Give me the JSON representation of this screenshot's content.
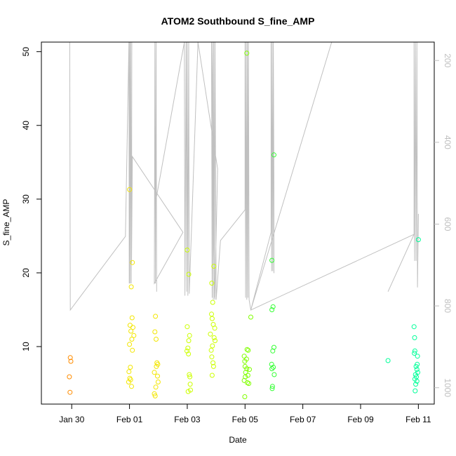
{
  "chart_data": {
    "type": "scatter",
    "title": "ATOM2 Southbound S_fine_AMP",
    "xlabel": "Date",
    "ylabel": "S_fine_AMP",
    "x_ticks": [
      "Jan 30",
      "Feb 01",
      "Feb 03",
      "Feb 05",
      "Feb 07",
      "Feb 09",
      "Feb 11"
    ],
    "y_ticks": [
      "10",
      "20",
      "30",
      "40",
      "50"
    ],
    "y2_ticks": [
      "200",
      "400",
      "600",
      "800",
      "1000"
    ],
    "xlim_days": [
      -2.05,
      11.55
    ],
    "ylim": [
      2.2,
      51.3
    ],
    "y2lim": [
      1040,
      155
    ],
    "y2_inverted": true,
    "colors": {
      "line": "#c0c0c0",
      "scale": [
        "#ff8c00",
        "#f3e600",
        "#ccff00",
        "#80ff00",
        "#33ff33",
        "#00ff99"
      ]
    },
    "series": [
      {
        "points_days": [
          [
            -1.05,
            8.5
          ],
          [
            -1.03,
            8.0
          ],
          [
            -1.08,
            5.9
          ],
          [
            -1.06,
            3.8
          ]
        ]
      },
      {
        "points_days": [
          [
            1.0,
            31.3
          ],
          [
            1.1,
            21.4
          ],
          [
            1.06,
            18.1
          ],
          [
            1.09,
            13.9
          ],
          [
            1.02,
            12.9
          ],
          [
            1.12,
            12.6
          ],
          [
            1.05,
            12.1
          ],
          [
            1.15,
            11.5
          ],
          [
            1.08,
            11.0
          ],
          [
            1.0,
            10.3
          ],
          [
            1.1,
            9.5
          ],
          [
            1.03,
            7.2
          ],
          [
            0.98,
            6.6
          ],
          [
            1.01,
            5.7
          ],
          [
            1.04,
            5.5
          ],
          [
            0.97,
            5.2
          ],
          [
            1.07,
            4.6
          ],
          [
            1.9,
            14.1
          ],
          [
            1.88,
            12.0
          ],
          [
            1.92,
            11.0
          ],
          [
            1.95,
            7.8
          ],
          [
            1.98,
            7.6
          ],
          [
            1.93,
            7.3
          ],
          [
            1.86,
            6.5
          ],
          [
            1.97,
            6.0
          ],
          [
            1.99,
            5.2
          ],
          [
            1.91,
            4.5
          ],
          [
            1.86,
            3.6
          ],
          [
            1.89,
            3.3
          ]
        ]
      },
      {
        "points_days": [
          [
            3.0,
            23.1
          ],
          [
            3.05,
            19.8
          ],
          [
            3.0,
            12.7
          ],
          [
            3.08,
            11.5
          ],
          [
            3.05,
            10.8
          ],
          [
            3.02,
            9.8
          ],
          [
            2.99,
            9.4
          ],
          [
            3.04,
            9.0
          ],
          [
            3.07,
            6.2
          ],
          [
            3.09,
            5.9
          ],
          [
            3.1,
            4.9
          ],
          [
            3.11,
            4.1
          ],
          [
            3.03,
            3.9
          ],
          [
            3.85,
            18.6
          ],
          [
            3.92,
            20.9
          ],
          [
            3.88,
            16.0
          ],
          [
            3.84,
            14.4
          ],
          [
            3.86,
            13.8
          ],
          [
            3.9,
            13.0
          ],
          [
            3.95,
            12.5
          ],
          [
            3.8,
            11.7
          ],
          [
            3.93,
            11.2
          ],
          [
            3.96,
            10.8
          ],
          [
            3.87,
            10.1
          ],
          [
            3.83,
            9.5
          ],
          [
            3.85,
            8.6
          ],
          [
            3.89,
            7.8
          ],
          [
            3.91,
            7.3
          ],
          [
            3.86,
            6.1
          ]
        ]
      },
      {
        "points_days": [
          [
            5.06,
            49.8
          ],
          [
            4.97,
            8.7
          ],
          [
            5.05,
            8.3
          ],
          [
            4.99,
            8.0
          ],
          [
            5.07,
            9.6
          ],
          [
            5.11,
            9.5
          ],
          [
            5.0,
            7.3
          ],
          [
            5.06,
            7.0
          ],
          [
            5.02,
            6.5
          ],
          [
            5.15,
            6.9
          ],
          [
            5.1,
            6.1
          ],
          [
            5.01,
            5.9
          ],
          [
            4.97,
            5.4
          ],
          [
            5.08,
            5.1
          ],
          [
            5.13,
            5.0
          ],
          [
            4.99,
            3.2
          ],
          [
            5.2,
            14.0
          ],
          [
            5.93,
            21.7
          ],
          [
            6.0,
            36.0
          ],
          [
            5.93,
            15.0
          ],
          [
            5.97,
            15.4
          ],
          [
            6.0,
            9.9
          ],
          [
            5.96,
            9.4
          ],
          [
            5.92,
            7.6
          ],
          [
            5.98,
            7.2
          ],
          [
            5.93,
            7.0
          ],
          [
            6.01,
            6.2
          ],
          [
            5.95,
            4.6
          ],
          [
            5.94,
            4.3
          ]
        ]
      },
      {
        "points_days": [
          [
            9.95,
            8.1
          ],
          [
            10.85,
            12.7
          ],
          [
            10.87,
            11.2
          ],
          [
            10.88,
            9.4
          ],
          [
            10.86,
            9.1
          ],
          [
            10.97,
            8.7
          ],
          [
            10.96,
            7.6
          ],
          [
            10.92,
            7.3
          ],
          [
            10.95,
            6.9
          ],
          [
            10.98,
            6.5
          ],
          [
            10.9,
            6.2
          ],
          [
            10.93,
            5.9
          ],
          [
            10.88,
            5.6
          ],
          [
            10.95,
            5.3
          ],
          [
            10.91,
            4.9
          ],
          [
            10.89,
            4.0
          ],
          [
            11.0,
            24.5
          ]
        ]
      }
    ],
    "overlay_line_y2": [
      [
        -1.05,
        810
      ],
      [
        -1.07,
        155
      ],
      [
        -1.05,
        810
      ],
      [
        0.86,
        630
      ],
      [
        0.98,
        155
      ],
      [
        0.99,
        745
      ],
      [
        1.01,
        155
      ],
      [
        1.02,
        745
      ],
      [
        1.04,
        155
      ],
      [
        1.06,
        745
      ],
      [
        1.08,
        155
      ],
      [
        1.07,
        695
      ],
      [
        1.1,
        435
      ],
      [
        2.85,
        620
      ],
      [
        1.86,
        745
      ],
      [
        1.88,
        155
      ],
      [
        1.9,
        745
      ],
      [
        1.92,
        155
      ],
      [
        1.94,
        765
      ],
      [
        1.93,
        535
      ],
      [
        2.9,
        155
      ],
      [
        2.92,
        775
      ],
      [
        2.96,
        155
      ],
      [
        2.98,
        765
      ],
      [
        3.0,
        155
      ],
      [
        3.02,
        775
      ],
      [
        3.05,
        155
      ],
      [
        3.07,
        770
      ],
      [
        3.37,
        155
      ],
      [
        4.05,
        465
      ],
      [
        3.95,
        785
      ],
      [
        3.84,
        155
      ],
      [
        3.86,
        780
      ],
      [
        3.88,
        155
      ],
      [
        3.9,
        785
      ],
      [
        3.92,
        155
      ],
      [
        3.94,
        780
      ],
      [
        3.96,
        155
      ],
      [
        4.0,
        785
      ],
      [
        4.15,
        640
      ],
      [
        5.0,
        565
      ],
      [
        5.0,
        155
      ],
      [
        5.02,
        780
      ],
      [
        5.04,
        155
      ],
      [
        5.06,
        785
      ],
      [
        5.08,
        155
      ],
      [
        5.1,
        780
      ],
      [
        5.12,
        155
      ],
      [
        5.14,
        785
      ],
      [
        5.2,
        810
      ],
      [
        5.9,
        620
      ],
      [
        5.9,
        155
      ],
      [
        5.92,
        715
      ],
      [
        5.94,
        155
      ],
      [
        5.96,
        715
      ],
      [
        5.98,
        155
      ],
      [
        6.0,
        720
      ],
      [
        6.0,
        515
      ],
      [
        5.98,
        155
      ],
      [
        7.0,
        155
      ],
      [
        8.0,
        155
      ],
      [
        5.2,
        810
      ],
      [
        10.85,
        625
      ],
      [
        9.95,
        765
      ],
      [
        10.85,
        625
      ],
      [
        10.85,
        155
      ],
      [
        10.87,
        690
      ],
      [
        10.9,
        155
      ],
      [
        10.92,
        690
      ],
      [
        10.95,
        155
      ],
      [
        10.97,
        755
      ],
      [
        11.0,
        575
      ]
    ]
  }
}
